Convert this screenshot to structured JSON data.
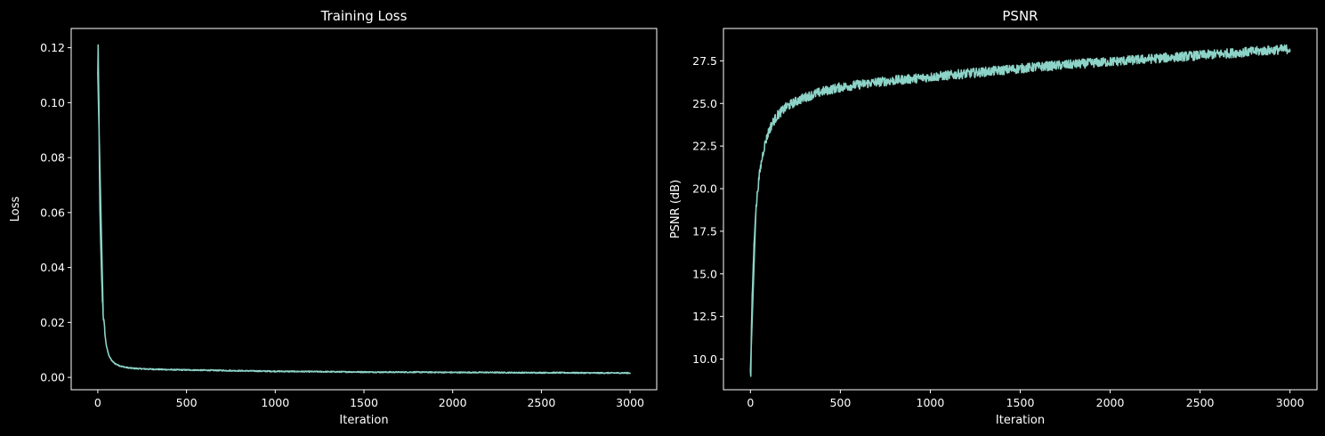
{
  "style": {
    "background": "#000000",
    "foreground": "#ffffff",
    "series_color": "#8dd3c7"
  },
  "chart_data": [
    {
      "type": "line",
      "title": "Training Loss",
      "xlabel": "Iteration",
      "ylabel": "Loss",
      "xlim": [
        -150,
        3150
      ],
      "ylim": [
        -0.0045,
        0.127
      ],
      "xticks": [
        0,
        500,
        1000,
        1500,
        2000,
        2500,
        3000
      ],
      "xtick_labels": [
        "0",
        "500",
        "1000",
        "1500",
        "2000",
        "2500",
        "3000"
      ],
      "yticks": [
        0.0,
        0.02,
        0.04,
        0.06,
        0.08,
        0.1,
        0.12
      ],
      "ytick_labels": [
        "0.00",
        "0.02",
        "0.04",
        "0.06",
        "0.08",
        "0.10",
        "0.12"
      ],
      "grid": false,
      "series": [
        {
          "x": [
            0,
            2,
            4,
            6,
            8,
            10,
            12,
            15,
            18,
            22,
            26,
            30,
            35,
            40,
            45,
            50,
            60,
            70,
            80,
            90,
            100,
            120,
            140,
            170,
            200,
            250,
            300,
            400,
            500,
            600,
            700,
            800,
            900,
            1000,
            1200,
            1400,
            1600,
            1800,
            2000,
            2200,
            2400,
            2600,
            2800,
            3000
          ],
          "y": [
            0.11,
            0.121,
            0.108,
            0.098,
            0.085,
            0.072,
            0.062,
            0.052,
            0.045,
            0.036,
            0.029,
            0.024,
            0.019,
            0.016,
            0.013,
            0.011,
            0.0085,
            0.007,
            0.006,
            0.0054,
            0.0049,
            0.0043,
            0.0039,
            0.0035,
            0.0033,
            0.0031,
            0.003,
            0.0028,
            0.0027,
            0.0026,
            0.0025,
            0.0024,
            0.0023,
            0.0022,
            0.0021,
            0.002,
            0.0019,
            0.0019,
            0.0018,
            0.0018,
            0.0017,
            0.0017,
            0.0016,
            0.0016
          ]
        }
      ]
    },
    {
      "type": "line",
      "title": "PSNR",
      "xlabel": "Iteration",
      "ylabel": "PSNR (dB)",
      "xlim": [
        -150,
        3150
      ],
      "ylim": [
        8.2,
        29.4
      ],
      "xticks": [
        0,
        500,
        1000,
        1500,
        2000,
        2500,
        3000
      ],
      "xtick_labels": [
        "0",
        "500",
        "1000",
        "1500",
        "2000",
        "2500",
        "3000"
      ],
      "yticks": [
        10.0,
        12.5,
        15.0,
        17.5,
        20.0,
        22.5,
        25.0,
        27.5
      ],
      "ytick_labels": [
        "10.0",
        "12.5",
        "15.0",
        "17.5",
        "20.0",
        "22.5",
        "25.0",
        "27.5"
      ],
      "grid": false,
      "series": [
        {
          "x": [
            0,
            2,
            4,
            6,
            8,
            10,
            15,
            20,
            25,
            30,
            40,
            50,
            60,
            70,
            80,
            100,
            120,
            150,
            200,
            250,
            300,
            400,
            500,
            600,
            700,
            800,
            900,
            1000,
            1200,
            1400,
            1600,
            1800,
            2000,
            2200,
            2400,
            2600,
            2800,
            3000
          ],
          "y": [
            9.2,
            9.1,
            10.5,
            11.8,
            12.8,
            13.6,
            15.2,
            16.6,
            17.7,
            18.6,
            19.9,
            20.8,
            21.5,
            22.1,
            22.6,
            23.3,
            23.8,
            24.3,
            24.8,
            25.1,
            25.35,
            25.7,
            25.95,
            26.1,
            26.25,
            26.35,
            26.45,
            26.55,
            26.75,
            26.95,
            27.15,
            27.3,
            27.45,
            27.6,
            27.75,
            27.9,
            28.05,
            28.2
          ]
        }
      ]
    }
  ]
}
